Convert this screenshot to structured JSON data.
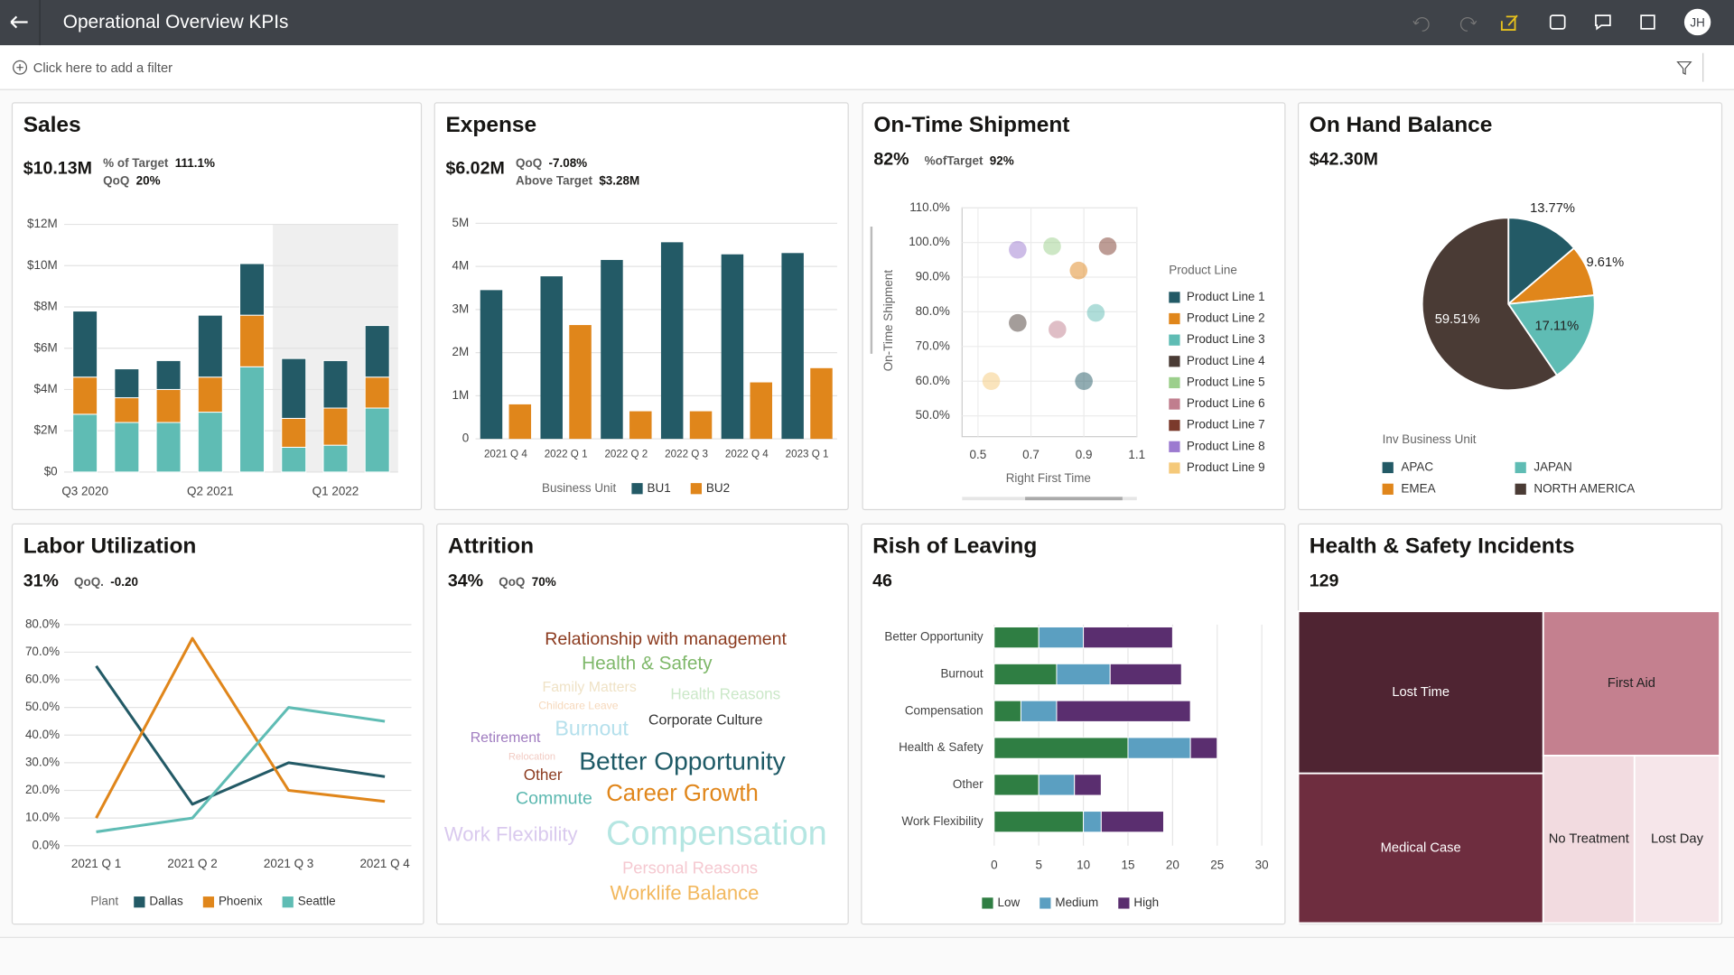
{
  "header": {
    "title": "Operational Overview KPIs",
    "user_initials": "JH"
  },
  "filter_bar": {
    "placeholder": "Click here to add a filter"
  },
  "chart_data": [
    {
      "type": "bar",
      "stacked": true,
      "title": "Sales",
      "kpi": "$10.13M",
      "metrics": [
        {
          "label": "% of Target",
          "value": "111.1%"
        },
        {
          "label": "QoQ",
          "value": "20%"
        }
      ],
      "categories": [
        "Q3 2020",
        null,
        null,
        "Q2 2021",
        null,
        null,
        "Q1 2022",
        null
      ],
      "series": [
        {
          "color": "#5fbcb4",
          "values": [
            2.8,
            2.4,
            2.4,
            2.9,
            5.1,
            1.2,
            1.3,
            3.1
          ]
        },
        {
          "color": "#e0861b",
          "values": [
            1.8,
            1.2,
            1.6,
            1.7,
            2.5,
            1.4,
            1.8,
            1.5
          ]
        },
        {
          "color": "#235a66",
          "values": [
            3.2,
            1.4,
            1.4,
            3.0,
            2.5,
            2.9,
            2.3,
            2.5
          ]
        }
      ],
      "ylim": [
        0,
        12
      ],
      "yticks": [
        {
          "value": 0,
          "label": "$0"
        },
        {
          "value": 2,
          "label": "$2M"
        },
        {
          "value": 4,
          "label": "$4M"
        },
        {
          "value": 6,
          "label": "$6M"
        },
        {
          "value": 8,
          "label": "$8M"
        },
        {
          "value": 10,
          "label": "$10M"
        },
        {
          "value": 12,
          "label": "$12M"
        }
      ],
      "grid": true
    },
    {
      "type": "bar",
      "stacked": false,
      "title": "Expense",
      "kpi": "$6.02M",
      "metrics": [
        {
          "label": "QoQ",
          "value": "-7.08%"
        },
        {
          "label": "Above Target",
          "value": "$3.28M"
        }
      ],
      "categories": [
        "2021 Q 4",
        "2022 Q 1",
        "2022 Q 2",
        "2022 Q 3",
        "2022 Q 4",
        "2023 Q 1"
      ],
      "legend_title": "Business Unit",
      "series": [
        {
          "name": "BU1",
          "color": "#235a66",
          "values": [
            3.45,
            3.77,
            4.15,
            4.56,
            4.28,
            4.31
          ]
        },
        {
          "name": "BU2",
          "color": "#e0861b",
          "values": [
            0.8,
            2.64,
            0.64,
            0.64,
            1.31,
            1.64
          ]
        }
      ],
      "ylim": [
        0,
        5
      ],
      "yticks": [
        0,
        {
          "value": 1,
          "label": "1M"
        },
        {
          "value": 2,
          "label": "2M"
        },
        {
          "value": 3,
          "label": "3M"
        },
        {
          "value": 4,
          "label": "4M"
        },
        {
          "value": 5,
          "label": "5M"
        }
      ],
      "grid": true
    },
    {
      "type": "scatter",
      "title": "On-Time Shipment",
      "kpi": "82%",
      "metrics": [
        {
          "label": "%ofTarget",
          "value": "92%"
        }
      ],
      "x_label": "Right First Time",
      "y_label": "On-Time Shipment",
      "legend_title": "Product Line",
      "series": [
        {
          "name": "Product Line 1",
          "color": "#235a66",
          "x": [
            0.9
          ],
          "values": [
            60
          ]
        },
        {
          "name": "Product Line 2",
          "color": "#e0861b",
          "x": [
            0.88
          ],
          "values": [
            91.9
          ]
        },
        {
          "name": "Product Line 3",
          "color": "#5fbcb4",
          "x": [
            0.945
          ],
          "values": [
            79.7
          ]
        },
        {
          "name": "Product Line 4",
          "color": "#4a3b35",
          "x": [
            0.65
          ],
          "values": [
            76.8
          ]
        },
        {
          "name": "Product Line 5",
          "color": "#9ccf8c",
          "x": [
            0.78
          ],
          "values": [
            98.9
          ]
        },
        {
          "name": "Product Line 6",
          "color": "#c07e8e",
          "x": [
            0.8
          ],
          "values": [
            74.9
          ]
        },
        {
          "name": "Product Line 7",
          "color": "#7b3a2c",
          "x": [
            0.99
          ],
          "values": [
            98.9
          ]
        },
        {
          "name": "Product Line 8",
          "color": "#9c7ad0",
          "x": [
            0.65
          ],
          "values": [
            97.9
          ]
        },
        {
          "name": "Product Line 9",
          "color": "#f5c97a",
          "x": [
            0.55
          ],
          "values": [
            60
          ]
        }
      ],
      "xlim": [
        0.44,
        1.1
      ],
      "xticks": [
        0.5,
        0.7,
        0.9,
        1.1
      ],
      "ylim": [
        44,
        110
      ],
      "yticks": [
        {
          "value": 50,
          "label": "50.0%"
        },
        {
          "value": 60,
          "label": "60.0%"
        },
        {
          "value": 70,
          "label": "70.0%"
        },
        {
          "value": 80,
          "label": "80.0%"
        },
        {
          "value": 90,
          "label": "90.0%"
        },
        {
          "value": 100,
          "label": "100.0%"
        },
        {
          "value": 110,
          "label": "110.0%"
        }
      ],
      "grid": true
    },
    {
      "type": "pie",
      "title": "On Hand Balance",
      "kpi": "$42.30M",
      "legend_title": "Inv Business Unit",
      "categories": [
        "APAC",
        "EMEA",
        "JAPAN",
        "NORTH AMERICA"
      ],
      "values": [
        13.77,
        9.61,
        17.11,
        59.51
      ],
      "value_labels": [
        "13.77%",
        "9.61%",
        "17.11%",
        "59.51%"
      ],
      "colors": [
        "#235a66",
        "#e0861b",
        "#5fbcb4",
        "#4a3b35"
      ]
    },
    {
      "type": "line",
      "title": "Labor Utilization",
      "kpi": "31%",
      "metrics": [
        {
          "label": "QoQ.",
          "value": "-0.20"
        }
      ],
      "categories": [
        "2021 Q 1",
        "2021 Q 2",
        "2021 Q 3",
        "2021 Q 4"
      ],
      "legend_title": "Plant",
      "series": [
        {
          "name": "Dallas",
          "color": "#235a66",
          "values": [
            65,
            15,
            30,
            25
          ]
        },
        {
          "name": "Phoenix",
          "color": "#e0861b",
          "values": [
            10,
            75,
            20,
            16
          ]
        },
        {
          "name": "Seattle",
          "color": "#5fbcb4",
          "values": [
            5,
            10,
            50,
            45
          ]
        }
      ],
      "ylim": [
        0,
        80
      ],
      "yticks": [
        {
          "value": 0,
          "label": "0.0%"
        },
        {
          "value": 10,
          "label": "10.0%"
        },
        {
          "value": 20,
          "label": "20.0%"
        },
        {
          "value": 30,
          "label": "30.0%"
        },
        {
          "value": 40,
          "label": "40.0%"
        },
        {
          "value": 50,
          "label": "50.0%"
        },
        {
          "value": 60,
          "label": "60.0%"
        },
        {
          "value": 70,
          "label": "70.0%"
        },
        {
          "value": 80,
          "label": "80.0%"
        }
      ],
      "grid": true
    },
    {
      "type": "wordcloud",
      "title": "Attrition",
      "kpi": "34%",
      "metrics": [
        {
          "label": "QoQ",
          "value": "70%"
        }
      ],
      "words": [
        {
          "text": "Relationship with management",
          "color": "#8b3a1e"
        },
        {
          "text": "Health & Safety",
          "color": "#7fb86a"
        },
        {
          "text": "Family Matters",
          "color": "#efe2c6"
        },
        {
          "text": "Childcare Leave",
          "color": "#f6d8bb"
        },
        {
          "text": "Health Reasons",
          "color": "#cbe8c8"
        },
        {
          "text": "Retirement",
          "color": "#a07cc0"
        },
        {
          "text": "Burnout",
          "color": "#b5e0ec"
        },
        {
          "text": "Corporate Culture",
          "color": "#333333"
        },
        {
          "text": "Relocation",
          "color": "#f2cbc3"
        },
        {
          "text": "Better Opportunity",
          "color": "#1e5a66"
        },
        {
          "text": "Other",
          "color": "#8b3a1e"
        },
        {
          "text": "Commute",
          "color": "#5cb8b0"
        },
        {
          "text": "Career Growth",
          "color": "#e0861b"
        },
        {
          "text": "Work Flexibility",
          "color": "#d9c9ee"
        },
        {
          "text": "Compensation",
          "color": "#b5e6e2"
        },
        {
          "text": "Personal Reasons",
          "color": "#f5c8d0"
        },
        {
          "text": "Worklife Balance",
          "color": "#f2b85e"
        }
      ]
    },
    {
      "type": "bar",
      "orientation": "horizontal",
      "stacked": true,
      "title": "Rish of Leaving",
      "kpi": "46",
      "categories": [
        "Better Opportunity",
        "Burnout",
        "Compensation",
        "Health & Safety",
        "Other",
        "Work Flexibility"
      ],
      "series": [
        {
          "name": "Low",
          "color": "#2f7e43",
          "values": [
            5,
            7,
            3,
            15,
            5,
            10
          ]
        },
        {
          "name": "Medium",
          "color": "#5b9fc1",
          "values": [
            5,
            6,
            4,
            7,
            4,
            2
          ]
        },
        {
          "name": "High",
          "color": "#5a2e6f",
          "values": [
            10,
            8,
            15,
            3,
            3,
            7
          ]
        }
      ],
      "xlim": [
        0,
        30
      ],
      "xticks": [
        0,
        5,
        10,
        15,
        20,
        25,
        30
      ],
      "grid": true
    },
    {
      "type": "treemap",
      "title": "Health & Safety Incidents",
      "kpi": "129",
      "categories": [
        "Lost Time",
        "Medical Case",
        "First Aid",
        "No Treatment",
        "Lost Day"
      ],
      "values": [
        39,
        36,
        25,
        15,
        14
      ],
      "colors": [
        "#4f2432",
        "#6e2d3f",
        "#c4808f",
        "#f2dbe0",
        "#f6e6ea"
      ]
    }
  ]
}
